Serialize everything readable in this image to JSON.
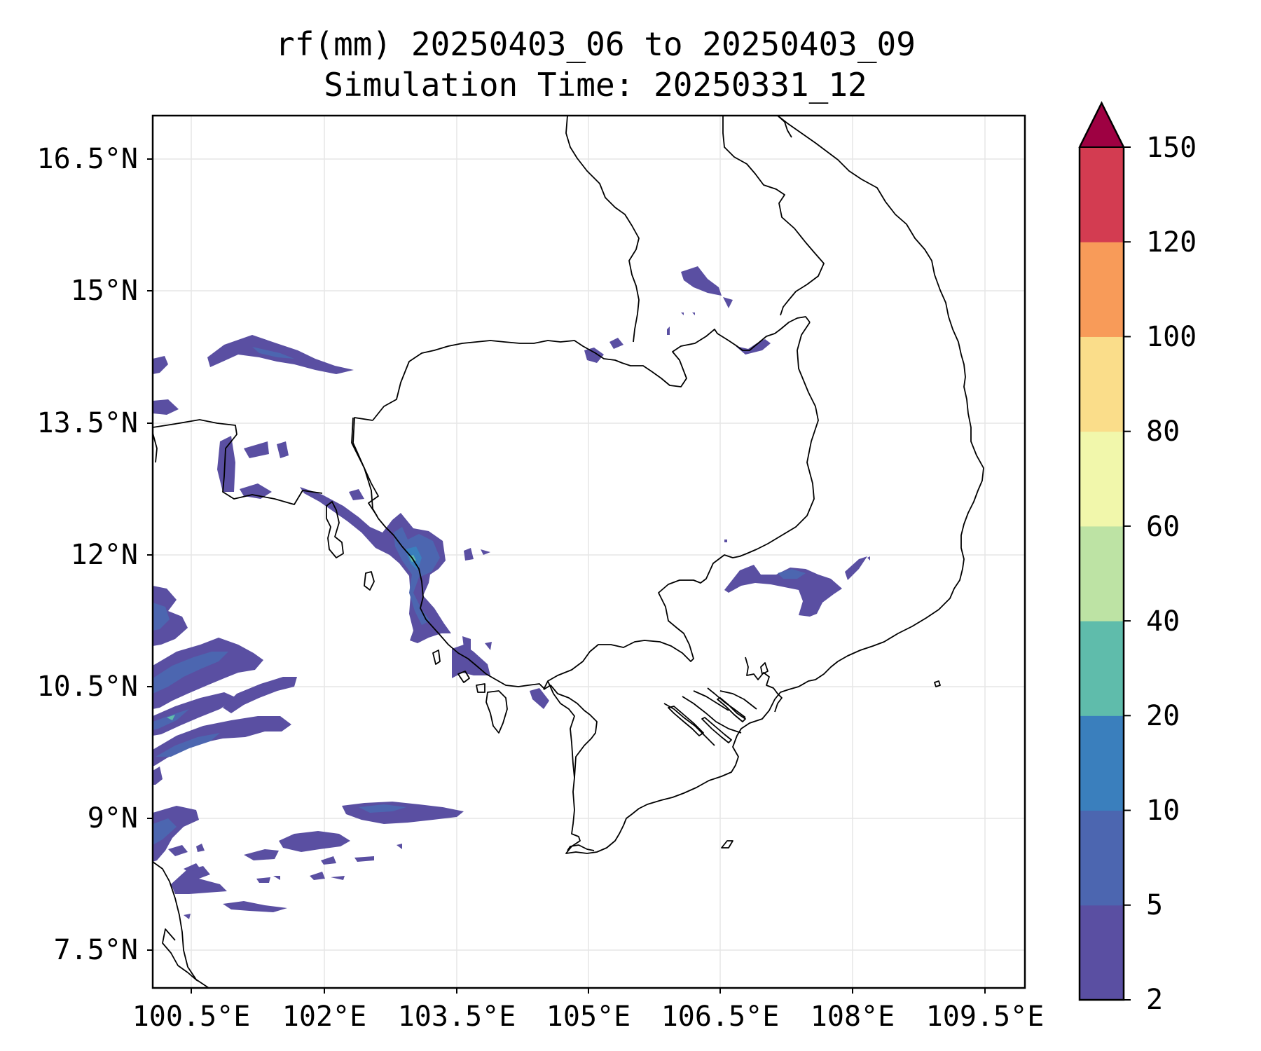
{
  "title": {
    "line1": "rf(mm) 20250403_06 to 20250403_09",
    "line2": "Simulation Time: 20250331_12"
  },
  "map": {
    "lat_labels": [
      "16.5°N",
      "15°N",
      "13.5°N",
      "12°N",
      "10.5°N",
      "9°N",
      "7.5°N"
    ],
    "lon_labels": [
      "100.5°E",
      "102°E",
      "103.5°E",
      "105°E",
      "106.5°E",
      "108°E",
      "109.5°E"
    ]
  },
  "colorbar": {
    "tick_labels": [
      "2",
      "5",
      "10",
      "20",
      "40",
      "60",
      "80",
      "100",
      "120",
      "150"
    ],
    "colors": [
      "#5a4fa2",
      "#4c66b0",
      "#3a7fbd",
      "#5fbcab",
      "#bde3a4",
      "#f1f7ab",
      "#fadd8a",
      "#f89b59",
      "#d33c51"
    ],
    "extend_color": "#9e0142"
  },
  "colors": {
    "coast": "#000000",
    "grid": "#e6e6e6",
    "rain_light": "#5a4fa2",
    "rain_mid": "#4c66b0",
    "rain_heavy": "#3a7fbd",
    "rain_peak": "#5fbcab"
  }
}
